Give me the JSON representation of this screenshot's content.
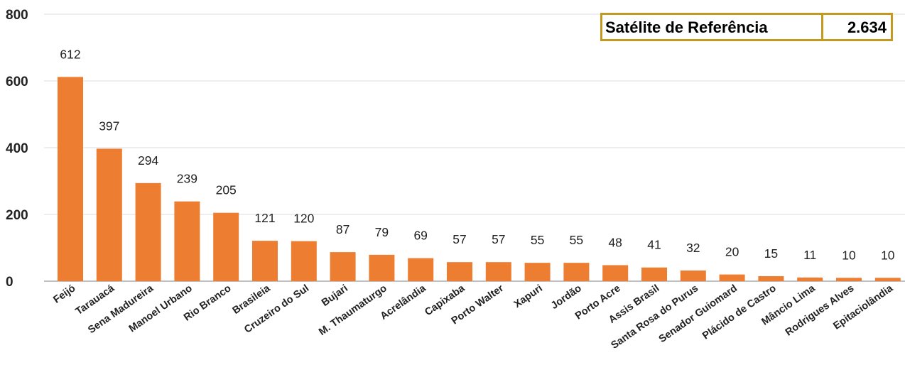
{
  "reference_box": {
    "label": "Satélite de Referência",
    "value": "2.634"
  },
  "colors": {
    "bar": "#ed7d31",
    "reference_border": "#c39a1f"
  },
  "chart_data": {
    "type": "bar",
    "categories": [
      "Feijó",
      "Tarauacá",
      "Sena Madureira",
      "Manoel Urbano",
      "Rio Branco",
      "Brasileia",
      "Cruzeiro do Sul",
      "Bujari",
      "M. Thaumaturgo",
      "Acrelândia",
      "Capixaba",
      "Porto Walter",
      "Xapuri",
      "Jordão",
      "Porto Acre",
      "Assis Brasil",
      "Santa Rosa do Purus",
      "Senador Guiomard",
      "Plácido de Castro",
      "Mâncio Lima",
      "Rodrigues Alves",
      "Epitaciolândia"
    ],
    "values": [
      612,
      397,
      294,
      239,
      205,
      121,
      120,
      87,
      79,
      69,
      57,
      57,
      55,
      55,
      48,
      41,
      32,
      20,
      15,
      11,
      10,
      10
    ],
    "ylim": [
      0,
      800
    ],
    "yticks": [
      0,
      200,
      400,
      600,
      800
    ],
    "grid": true,
    "data_labels": true,
    "title": "",
    "xlabel": "",
    "ylabel": ""
  }
}
